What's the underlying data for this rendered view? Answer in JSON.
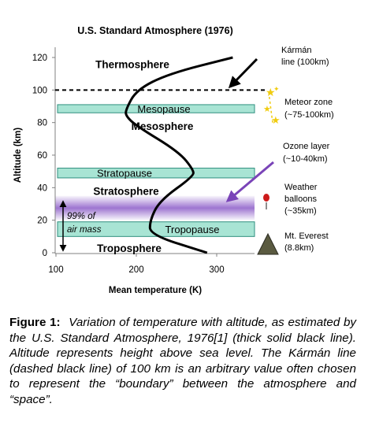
{
  "chart_data": {
    "type": "line",
    "title": "U.S. Standard Atmosphere (1976)",
    "xlabel": "Mean temperature (K)",
    "ylabel": "Altitude (km)",
    "xlim": [
      100,
      350
    ],
    "ylim": [
      0,
      125
    ],
    "xticks": [
      "100",
      "200",
      "300"
    ],
    "yticks": [
      "0",
      "20",
      "40",
      "60",
      "80",
      "100",
      "120"
    ],
    "series": [
      {
        "x": [
          288,
          217,
          217,
          229,
          271,
          271,
          253,
          200,
          187,
          187,
          200,
          240,
          320
        ],
        "y": [
          0,
          11,
          20,
          32,
          47,
          51,
          62,
          78,
          84,
          88,
          100,
          110,
          120
        ]
      }
    ],
    "karman_line_km": 100,
    "bands": [
      {
        "label": "Mesopause",
        "y": [
          86,
          91
        ],
        "color": "#a8e4d4"
      },
      {
        "label": "Stratopause",
        "y": [
          46,
          52
        ],
        "color": "#a8e4d4"
      },
      {
        "label": "Tropopause",
        "y": [
          10,
          19
        ],
        "color": "#a8e4d4"
      },
      {
        "label": "",
        "y": [
          20,
          35
        ],
        "color": "#8c5cc8"
      }
    ],
    "layer_labels": [
      {
        "text": "Thermosphere",
        "y": 116
      },
      {
        "text": "Mesosphere",
        "y": 78
      },
      {
        "text": "Stratosphere",
        "y": 38
      },
      {
        "text": "Troposphere",
        "y": 3
      }
    ],
    "air_mass_label": [
      "99% of",
      "air mass"
    ],
    "annotations": [
      {
        "name": "karman",
        "lines": [
          "Kármán",
          "line (100km)"
        ]
      },
      {
        "name": "meteor",
        "lines": [
          "Meteor zone",
          "(~75-100km)"
        ]
      },
      {
        "name": "ozone",
        "lines": [
          "Ozone layer",
          "(~10-40km)"
        ]
      },
      {
        "name": "balloons",
        "lines": [
          "Weather",
          "balloons",
          "(~35km)"
        ]
      },
      {
        "name": "everest",
        "lines": [
          "Mt. Everest",
          "(8.8km)"
        ]
      }
    ],
    "colors": {
      "band": "#a8e4d4",
      "band_border": "#2f8f7f",
      "ozone": "#8c5cc8",
      "ozone_arrow": "#7a44b8",
      "star": "#f0cc10",
      "balloon": "#cc1a1a",
      "mountain": "#5a5a40"
    }
  },
  "caption": {
    "lead": "Figure 1:",
    "body": "Variation of temperature with altitude, as estimated by the U.S. Standard Atmosphere, 1976[1] (thick solid black line). Altitude represents height above sea level. The Kármán line (dashed black line) of 100 km is an arbitrary value often chosen to represent the “boundary” between the atmosphere and “space”."
  }
}
